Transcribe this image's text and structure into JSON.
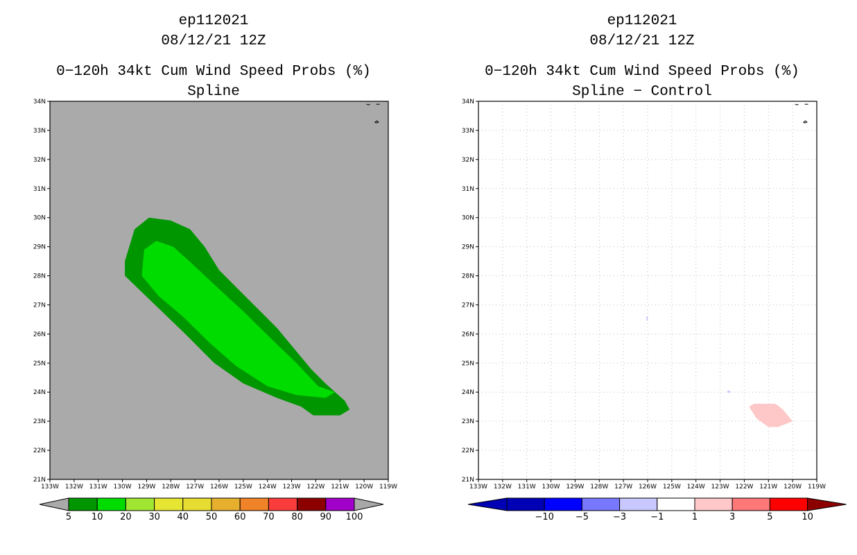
{
  "left_panel": {
    "storm_id": "ep112021",
    "datetime": "08/12/21 12Z",
    "product": "0−120h 34kt Cum Wind Speed Probs (%)",
    "subtitle": "Spline"
  },
  "right_panel": {
    "storm_id": "ep112021",
    "datetime": "08/12/21 12Z",
    "product": "0−120h 34kt Cum Wind Speed Probs (%)",
    "subtitle": "Spline − Control"
  },
  "axes": {
    "lon_labels": [
      "133W",
      "132W",
      "131W",
      "130W",
      "129W",
      "128W",
      "127W",
      "126W",
      "125W",
      "124W",
      "123W",
      "122W",
      "121W",
      "120W",
      "119W"
    ],
    "lat_labels": [
      "21N",
      "22N",
      "23N",
      "24N",
      "25N",
      "26N",
      "27N",
      "28N",
      "29N",
      "30N",
      "31N",
      "32N",
      "33N",
      "34N"
    ],
    "lon_range": [
      -133,
      -119
    ],
    "lat_range": [
      21,
      34
    ]
  },
  "colors": {
    "land_bg": "#aaaaaa",
    "prob_5": "#009600",
    "prob_10": "#00dc00",
    "diff_pos_1_3": "#ffc8c8",
    "grid": "#bbbbbb"
  },
  "left_legend": {
    "labels": [
      "5",
      "10",
      "20",
      "30",
      "40",
      "50",
      "60",
      "70",
      "80",
      "90",
      "100"
    ],
    "colors": [
      "#aaaaaa",
      "#009600",
      "#00dc00",
      "#a0e632",
      "#e6dc32",
      "#e6af2d",
      "#f08228",
      "#fa3c3c",
      "#f0f0f0",
      "#8c0000",
      "#a000c8",
      "#a0a0a0"
    ],
    "swatches": [
      "#009600",
      "#00dc00",
      "#a0e632",
      "#e6e632",
      "#e6dc32",
      "#e6af2d",
      "#f08228",
      "#fa3c3c",
      "#8c0000",
      "#a000c8"
    ]
  },
  "right_legend": {
    "labels": [
      "−10",
      "−5",
      "−3",
      "−1",
      "1",
      "3",
      "5",
      "10"
    ],
    "swatches": [
      "#0000b4",
      "#0000ff",
      "#7878ff",
      "#c8c8ff",
      "#ffffff",
      "#ffc8c8",
      "#ff7878",
      "#ff0000"
    ],
    "left_tip": "#0000b4",
    "right_tip": "#8c0000"
  },
  "chart_data": [
    {
      "type": "map",
      "title": "0−120h 34kt Cum Wind Speed Probs (%)",
      "subtitle": "Spline",
      "x_range_deg": [
        -133,
        -119
      ],
      "y_range_deg": [
        21,
        34
      ],
      "contours": [
        {
          "level": "5-10%",
          "color": "#009600",
          "polygon_lonlat": [
            [
              -129.9,
              28.5
            ],
            [
              -129.5,
              29.6
            ],
            [
              -128.9,
              30.0
            ],
            [
              -128.0,
              29.9
            ],
            [
              -127.2,
              29.6
            ],
            [
              -126.6,
              29.0
            ],
            [
              -126.0,
              28.2
            ],
            [
              -124.8,
              27.2
            ],
            [
              -123.6,
              26.2
            ],
            [
              -122.8,
              25.4
            ],
            [
              -122.2,
              24.8
            ],
            [
              -121.6,
              24.3
            ],
            [
              -120.8,
              23.7
            ],
            [
              -120.6,
              23.4
            ],
            [
              -121.0,
              23.2
            ],
            [
              -122.1,
              23.2
            ],
            [
              -122.6,
              23.5
            ],
            [
              -123.6,
              23.8
            ],
            [
              -125.0,
              24.3
            ],
            [
              -126.2,
              25.0
            ],
            [
              -127.4,
              26.0
            ],
            [
              -128.4,
              26.8
            ],
            [
              -129.4,
              27.6
            ],
            [
              -129.9,
              28.0
            ]
          ]
        },
        {
          "level": "10-20%",
          "color": "#00dc00",
          "polygon_lonlat": [
            [
              -129.2,
              28.0
            ],
            [
              -129.1,
              28.9
            ],
            [
              -128.6,
              29.2
            ],
            [
              -127.9,
              29.0
            ],
            [
              -127.1,
              28.4
            ],
            [
              -126.2,
              27.7
            ],
            [
              -124.9,
              26.7
            ],
            [
              -123.8,
              25.8
            ],
            [
              -122.8,
              25.0
            ],
            [
              -121.9,
              24.2
            ],
            [
              -121.2,
              24.0
            ],
            [
              -121.6,
              23.8
            ],
            [
              -122.8,
              23.9
            ],
            [
              -124.0,
              24.2
            ],
            [
              -125.3,
              24.9
            ],
            [
              -126.4,
              25.7
            ],
            [
              -127.5,
              26.6
            ],
            [
              -128.5,
              27.3
            ]
          ]
        }
      ]
    },
    {
      "type": "map",
      "title": "0−120h 34kt Cum Wind Speed Probs (%)",
      "subtitle": "Spline − Control",
      "x_range_deg": [
        -133,
        -119
      ],
      "y_range_deg": [
        21,
        34
      ],
      "contours": [
        {
          "level": "1 to 3",
          "color": "#ffc8c8",
          "polygon_lonlat": [
            [
              -121.8,
              23.5
            ],
            [
              -121.5,
              23.1
            ],
            [
              -121.0,
              22.8
            ],
            [
              -120.6,
              22.8
            ],
            [
              -120.0,
              23.0
            ],
            [
              -120.4,
              23.4
            ],
            [
              -120.7,
              23.6
            ],
            [
              -121.6,
              23.6
            ]
          ]
        }
      ]
    }
  ]
}
